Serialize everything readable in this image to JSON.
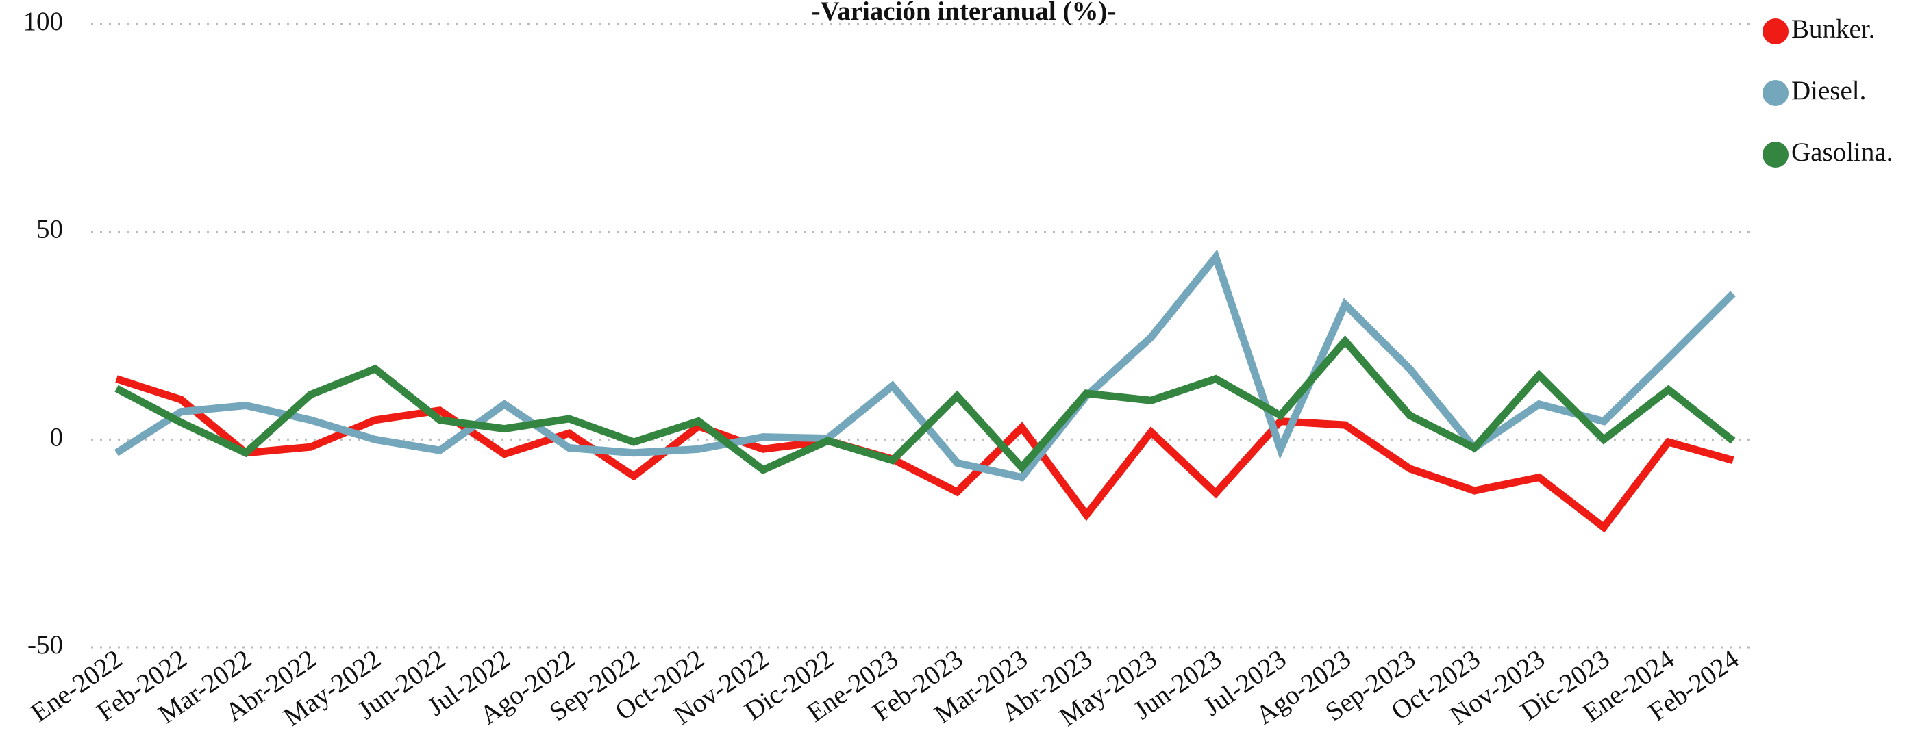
{
  "chart_data": {
    "type": "line",
    "title": "-Variación interanual (%)-",
    "categories": [
      "Ene-2022",
      "Feb-2022",
      "Mar-2022",
      "Abr-2022",
      "May-2022",
      "Jun-2022",
      "Jul-2022",
      "Ago-2022",
      "Sep-2022",
      "Oct-2022",
      "Nov-2022",
      "Dic-2022",
      "Ene-2023",
      "Feb-2023",
      "Mar-2023",
      "Abr-2023",
      "May-2023",
      "Jun-2023",
      "Jul-2023",
      "Ago-2023",
      "Sep-2023",
      "Oct-2023",
      "Nov-2023",
      "Dic-2023",
      "Ene-2024",
      "Feb-2024"
    ],
    "series": [
      {
        "name": "Bunker.",
        "color": "#ee1c14",
        "values": [
          14.6,
          9.6,
          -3.2,
          -1.8,
          4.7,
          7.0,
          -3.5,
          1.5,
          -8.8,
          3.2,
          -2.3,
          -0.3,
          -4.7,
          -12.6,
          2.9,
          -18.1,
          1.8,
          -12.9,
          4.4,
          3.5,
          -7.0,
          -12.3,
          -9.1,
          -21.1,
          -0.6,
          -5.0
        ]
      },
      {
        "name": "Diesel.",
        "color": "#74a7bb",
        "values": [
          -3.2,
          6.7,
          8.2,
          4.7,
          0,
          -2.6,
          8.5,
          -2.0,
          -3.2,
          -2.3,
          0.6,
          0.3,
          12.9,
          -5.6,
          -9.1,
          10.5,
          24.6,
          43.9,
          -2.3,
          32.5,
          17.0,
          -2.0,
          8.5,
          4.4,
          19.6,
          35.1
        ]
      },
      {
        "name": "Gasolina.",
        "color": "#338540",
        "values": [
          12.3,
          4.1,
          -3.2,
          10.8,
          17.0,
          4.7,
          2.6,
          5.0,
          -0.6,
          4.4,
          -7.3,
          -0.3,
          -5.0,
          10.5,
          -6.7,
          11.1,
          9.4,
          14.6,
          5.8,
          23.7,
          5.8,
          -2.0,
          15.5,
          0,
          12.0,
          -0.3
        ]
      }
    ],
    "ylim": [
      -50,
      100
    ],
    "yticks": [
      -50,
      0,
      50,
      100
    ],
    "grid": true,
    "legend": "top-right"
  }
}
